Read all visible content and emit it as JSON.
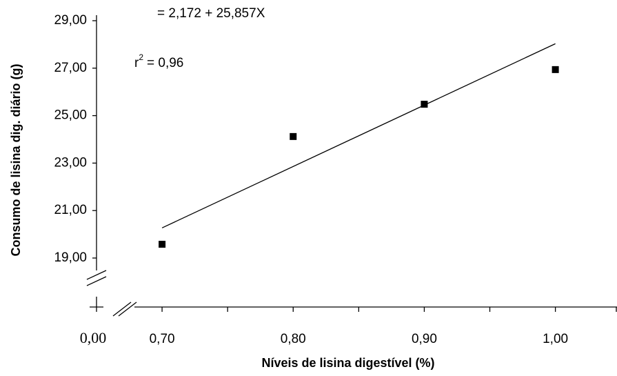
{
  "chart_data": {
    "type": "scatter",
    "x_label": "Níveis de lisina digestível (%)",
    "y_label": "Consumo de lisina dig. diário (g)",
    "equation": "= 2,172 + 25,857X",
    "r2": {
      "base": "r",
      "sup": "2",
      "text": "= 0,96"
    },
    "origin_label": "0,00",
    "x": [
      0.7,
      0.8,
      0.9,
      1.0
    ],
    "values": [
      19.58,
      24.12,
      25.48,
      26.94
    ],
    "color": "#000000",
    "trendline": {
      "x": [
        0.7,
        1.0
      ],
      "values": [
        20.27,
        28.03
      ]
    },
    "xlim": [
      0.65,
      1.047
    ],
    "ylim": [
      19,
      29
    ],
    "xticks": [
      {
        "value": 0.7,
        "label": "0,70"
      },
      {
        "value": 0.8,
        "label": "0,80"
      },
      {
        "value": 0.9,
        "label": "0,90"
      },
      {
        "value": 1.0,
        "label": "1,00"
      }
    ],
    "x_minor_ticks": [
      0.75,
      0.85,
      0.95,
      1.05
    ],
    "yticks": [
      {
        "value": 19,
        "label": "19,00"
      },
      {
        "value": 21,
        "label": "21,00"
      },
      {
        "value": 23,
        "label": "23,00"
      },
      {
        "value": 25,
        "label": "25,00"
      },
      {
        "value": 27,
        "label": "27,00"
      },
      {
        "value": 29,
        "label": "29,00"
      }
    ]
  }
}
